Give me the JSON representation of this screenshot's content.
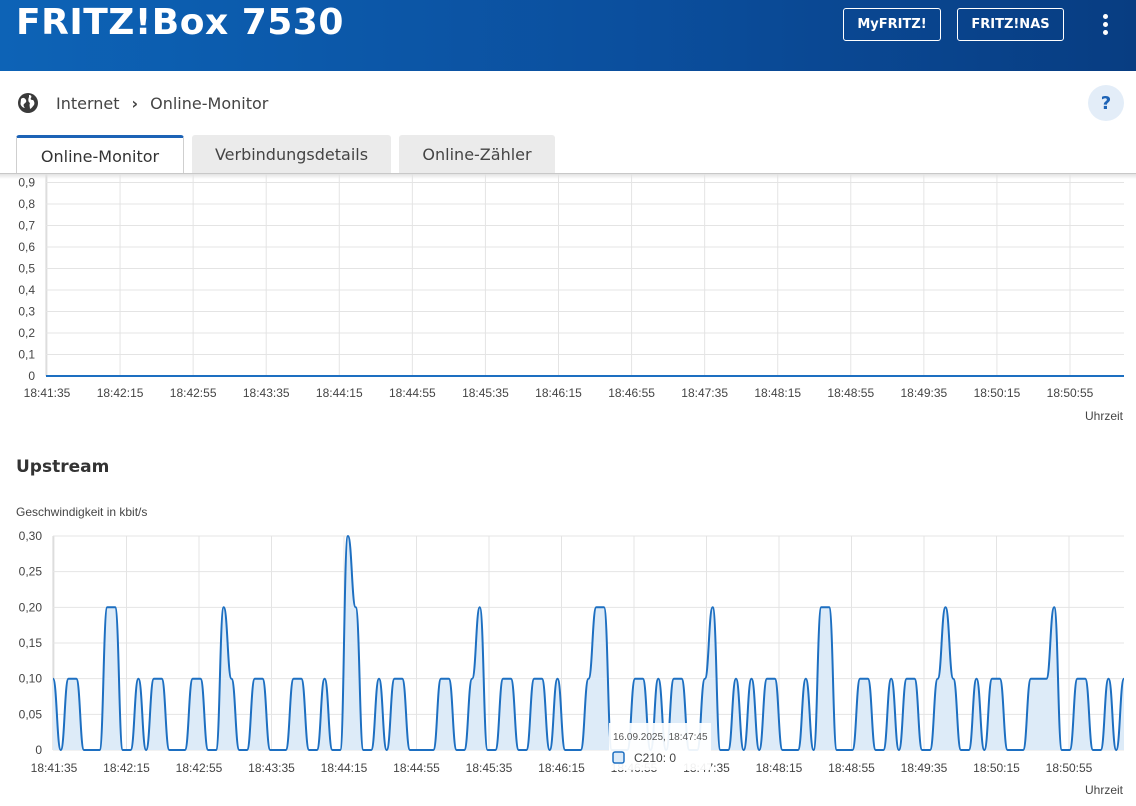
{
  "header": {
    "title": "FRITZ!Box 7530",
    "buttons": {
      "myfritz": "MyFRITZ!",
      "fritznas": "FRITZ!NAS"
    },
    "menu_icon": "kebab-menu-icon",
    "color": "#0b56a8"
  },
  "breadcrumb": {
    "icon": "globe-icon",
    "section": "Internet",
    "separator": "›",
    "page": "Online-Monitor"
  },
  "help": {
    "label": "?"
  },
  "tabs": [
    {
      "label": "Online-Monitor",
      "active": true
    },
    {
      "label": "Verbindungsdetails",
      "active": false
    },
    {
      "label": "Online-Zähler",
      "active": false
    }
  ],
  "upstream": {
    "title": "Upstream",
    "ylabel": "Geschwindigkeit in kbit/s"
  },
  "tooltip": {
    "time": "16.09.2025, 18:47:45",
    "series": "C210: 0"
  },
  "chart_data": [
    {
      "type": "line",
      "title": "",
      "xlabel": "Uhrzeit",
      "ylabel": "",
      "ylim": [
        0,
        0.9
      ],
      "yticks": [
        "0,9",
        "0,8",
        "0,7",
        "0,6",
        "0,5",
        "0,4",
        "0,3",
        "0,2",
        "0,1",
        "0"
      ],
      "xticks": [
        "18:41:35",
        "18:42:15",
        "18:42:55",
        "18:43:35",
        "18:44:15",
        "18:44:55",
        "18:45:35",
        "18:46:15",
        "18:46:55",
        "18:47:35",
        "18:48:15",
        "18:48:55",
        "18:49:35",
        "18:50:15",
        "18:50:55"
      ],
      "grid": true,
      "color": "#1d6fc1",
      "series": [
        {
          "values": [
            0,
            0
          ]
        }
      ]
    },
    {
      "type": "area",
      "title": "Upstream",
      "xlabel": "Uhrzeit",
      "ylabel": "Geschwindigkeit in kbit/s",
      "ylim": [
        0,
        0.3
      ],
      "yticks": [
        "0,30",
        "0,25",
        "0,20",
        "0,15",
        "0,10",
        "0,05",
        "0"
      ],
      "xticks": [
        "18:41:35",
        "18:42:15",
        "18:42:55",
        "18:43:35",
        "18:44:15",
        "18:44:55",
        "18:45:35",
        "18:46:15",
        "18:46:55",
        "18:47:35",
        "18:48:15",
        "18:48:55",
        "18:49:35",
        "18:50:15",
        "18:50:55"
      ],
      "grid": true,
      "color": "#1d6fc1",
      "fill": "#ddebf8",
      "series": [
        {
          "name": "C210",
          "step_seconds": 2,
          "values": [
            0.1,
            0,
            0.1,
            0.1,
            0,
            0,
            0,
            0.2,
            0.2,
            0,
            0,
            0.1,
            0,
            0.1,
            0.1,
            0,
            0,
            0,
            0.1,
            0.1,
            0,
            0,
            0.2,
            0.1,
            0,
            0,
            0.1,
            0.1,
            0,
            0,
            0,
            0.1,
            0.1,
            0,
            0,
            0.1,
            0,
            0,
            0.3,
            0.2,
            0,
            0,
            0.1,
            0,
            0.1,
            0.1,
            0,
            0,
            0,
            0,
            0.1,
            0.1,
            0,
            0,
            0.1,
            0.2,
            0,
            0,
            0.1,
            0.1,
            0,
            0,
            0.1,
            0.1,
            0,
            0.1,
            0,
            0,
            0,
            0.1,
            0.2,
            0.2,
            0,
            0,
            0,
            0.1,
            0.1,
            0,
            0.1,
            0,
            0.1,
            0.1,
            0,
            0,
            0.1,
            0.2,
            0,
            0,
            0.1,
            0,
            0.1,
            0,
            0.1,
            0.1,
            0,
            0,
            0,
            0.1,
            0,
            0.2,
            0.2,
            0,
            0,
            0,
            0.1,
            0.1,
            0,
            0,
            0.1,
            0,
            0.1,
            0.1,
            0,
            0,
            0.1,
            0.2,
            0.1,
            0,
            0,
            0.1,
            0,
            0.1,
            0.1,
            0,
            0,
            0,
            0.1,
            0.1,
            0.1,
            0.2,
            0,
            0,
            0.1,
            0.1,
            0,
            0,
            0.1,
            0,
            0.1
          ]
        }
      ]
    }
  ]
}
